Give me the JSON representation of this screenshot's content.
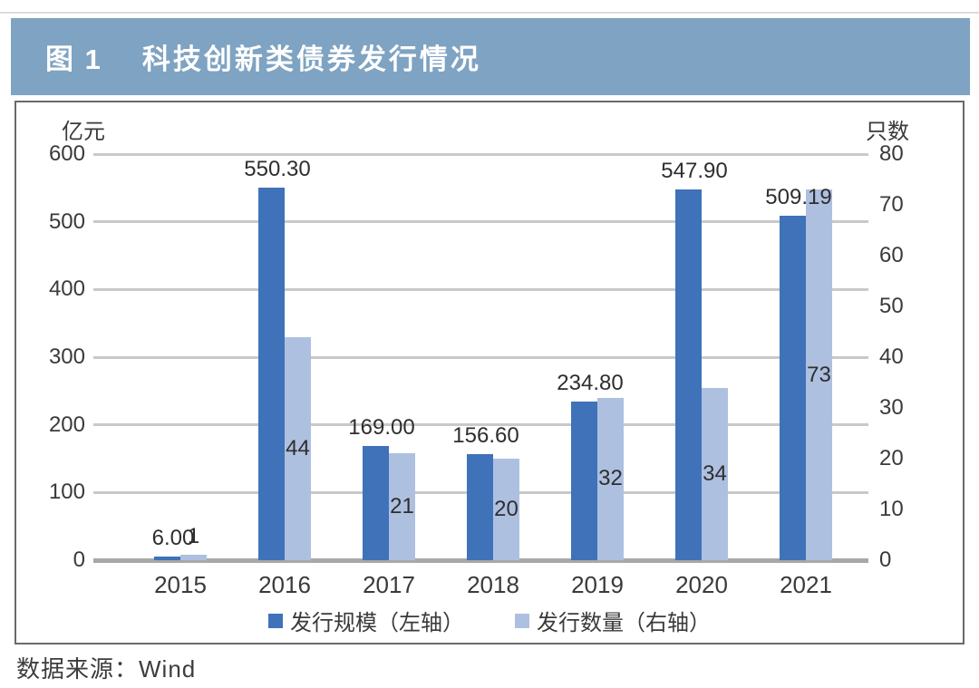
{
  "figure": {
    "number": "图 1",
    "title": "科技创新类债券发行情况",
    "band_color": "#7fa3c2"
  },
  "source": {
    "text": "数据来源：Wind"
  },
  "chart_data": {
    "type": "bar",
    "categories": [
      "2015",
      "2016",
      "2017",
      "2018",
      "2019",
      "2020",
      "2021"
    ],
    "series": [
      {
        "name": "发行规模（左轴）",
        "axis": "left",
        "values": [
          6.0,
          550.3,
          169.0,
          156.6,
          234.8,
          547.9,
          509.19
        ],
        "labels": [
          "6.00",
          "550.30",
          "169.00",
          "156.60",
          "234.80",
          "547.90",
          "509.19"
        ],
        "color": "#3f72b9"
      },
      {
        "name": "发行数量（右轴）",
        "axis": "right",
        "values": [
          1,
          44,
          21,
          20,
          32,
          34,
          73
        ],
        "labels": [
          "1",
          "44",
          "21",
          "20",
          "32",
          "34",
          "73"
        ],
        "color": "#aec0e0"
      }
    ],
    "left_axis": {
      "unit": "亿元",
      "min": 0,
      "max": 600,
      "tick_step": 100,
      "ticks": [
        600,
        500,
        400,
        300,
        200,
        100,
        0
      ]
    },
    "right_axis": {
      "unit": "只数",
      "min": 0,
      "max": 80,
      "tick_step": 10,
      "ticks": [
        80,
        70,
        60,
        50,
        40,
        30,
        20,
        10,
        0
      ]
    },
    "grid": true,
    "legend_position": "bottom"
  }
}
